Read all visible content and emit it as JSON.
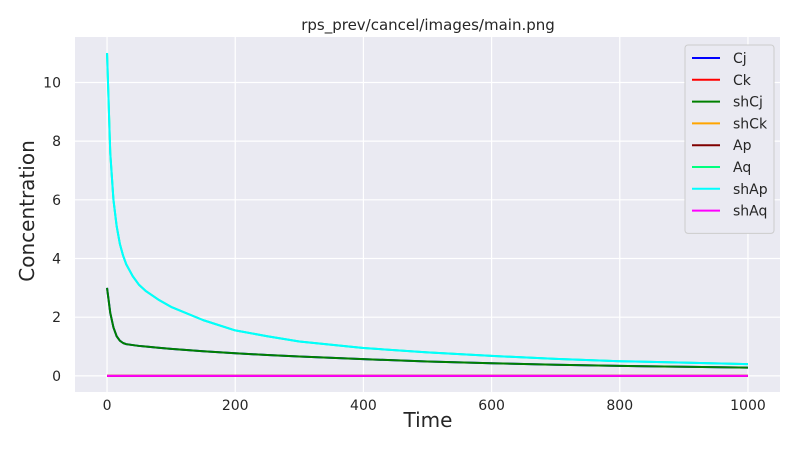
{
  "chart_data": {
    "type": "line",
    "title": "rps_prev/cancel/images/main.png",
    "xlabel": "Time",
    "ylabel": "Concentration",
    "xlim": [
      -50,
      1050
    ],
    "ylim": [
      -0.55,
      11.55
    ],
    "xticks": [
      0,
      200,
      400,
      600,
      800,
      1000
    ],
    "yticks": [
      0,
      2,
      4,
      6,
      8,
      10
    ],
    "grid": true,
    "legend_position": "top-right",
    "x": [
      0,
      5,
      10,
      15,
      20,
      25,
      30,
      40,
      50,
      60,
      80,
      100,
      150,
      200,
      250,
      300,
      400,
      500,
      600,
      700,
      800,
      900,
      1000
    ],
    "series": [
      {
        "name": "Cj",
        "color": "#0000ff",
        "values": [
          3.0,
          2.15,
          1.65,
          1.35,
          1.2,
          1.12,
          1.08,
          1.05,
          1.02,
          1.0,
          0.96,
          0.92,
          0.84,
          0.77,
          0.71,
          0.66,
          0.57,
          0.49,
          0.43,
          0.38,
          0.34,
          0.31,
          0.28
        ]
      },
      {
        "name": "Ck",
        "color": "#ff0000",
        "values": [
          0,
          0,
          0,
          0,
          0,
          0,
          0,
          0,
          0,
          0,
          0,
          0,
          0,
          0,
          0,
          0,
          0,
          0,
          0,
          0,
          0,
          0,
          0
        ]
      },
      {
        "name": "shCj",
        "color": "#008000",
        "values": [
          3.0,
          2.15,
          1.65,
          1.35,
          1.2,
          1.12,
          1.08,
          1.05,
          1.02,
          1.0,
          0.96,
          0.92,
          0.84,
          0.77,
          0.71,
          0.66,
          0.57,
          0.49,
          0.43,
          0.38,
          0.34,
          0.31,
          0.28
        ]
      },
      {
        "name": "shCk",
        "color": "#ffa500",
        "values": [
          0,
          0,
          0,
          0,
          0,
          0,
          0,
          0,
          0,
          0,
          0,
          0,
          0,
          0,
          0,
          0,
          0,
          0,
          0,
          0,
          0,
          0,
          0
        ]
      },
      {
        "name": "Ap",
        "color": "#800000",
        "values": [
          0,
          0,
          0,
          0,
          0,
          0,
          0,
          0,
          0,
          0,
          0,
          0,
          0,
          0,
          0,
          0,
          0,
          0,
          0,
          0,
          0,
          0,
          0
        ]
      },
      {
        "name": "Aq",
        "color": "#00ff7f",
        "values": [
          11.0,
          7.6,
          6.0,
          5.1,
          4.5,
          4.1,
          3.8,
          3.4,
          3.1,
          2.9,
          2.6,
          2.35,
          1.9,
          1.55,
          1.35,
          1.17,
          0.95,
          0.8,
          0.68,
          0.58,
          0.5,
          0.45,
          0.4
        ]
      },
      {
        "name": "shAp",
        "color": "#00ffff",
        "values": [
          11.0,
          7.6,
          6.0,
          5.1,
          4.5,
          4.1,
          3.8,
          3.4,
          3.1,
          2.9,
          2.6,
          2.35,
          1.9,
          1.55,
          1.35,
          1.17,
          0.95,
          0.8,
          0.68,
          0.58,
          0.5,
          0.45,
          0.4
        ]
      },
      {
        "name": "shAq",
        "color": "#ff00ff",
        "values": [
          0,
          0,
          0,
          0,
          0,
          0,
          0,
          0,
          0,
          0,
          0,
          0,
          0,
          0,
          0,
          0,
          0,
          0,
          0,
          0,
          0,
          0,
          0
        ]
      }
    ]
  },
  "style": {
    "plot_background": "#eaeaf2",
    "grid_color": "#ffffff",
    "legend_background": "#eaeaf2",
    "legend_border": "#cccccc"
  }
}
